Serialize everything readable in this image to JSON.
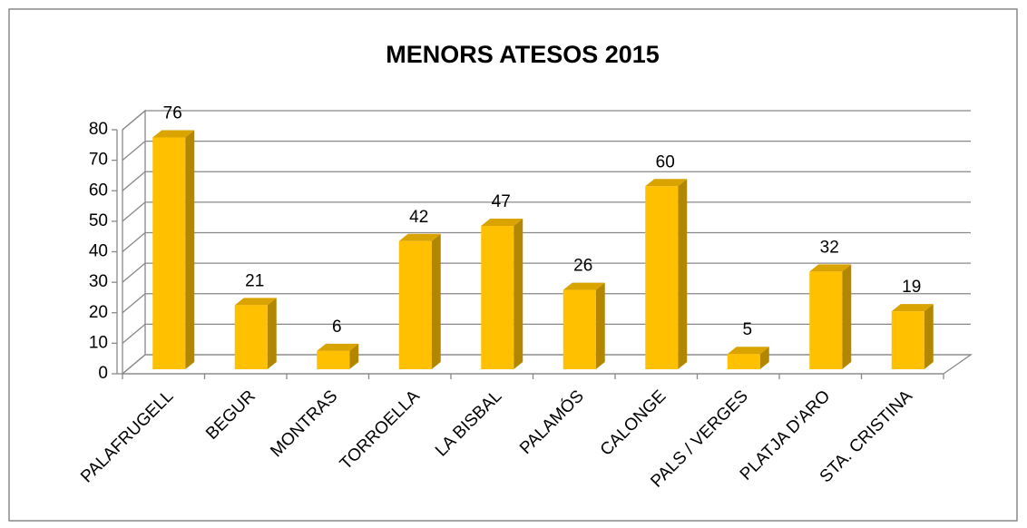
{
  "chart_data": {
    "type": "bar",
    "title": "MENORS ATESOS 2015",
    "categories": [
      "PALAFRUGELL",
      "BEGUR",
      "MONTRAS",
      "TORROELLA",
      "LA BISBAL",
      "PALAMÓS",
      "CALONGE",
      "PALS / VERGES",
      "PLATJA D'ARO",
      "STA. CRISTINA"
    ],
    "values": [
      76,
      21,
      6,
      42,
      47,
      26,
      60,
      5,
      32,
      19
    ],
    "color": "#ffc000",
    "ylim": [
      0,
      80
    ],
    "yticks": [
      0,
      10,
      20,
      30,
      40,
      50,
      60,
      70,
      80
    ],
    "grid": true
  }
}
